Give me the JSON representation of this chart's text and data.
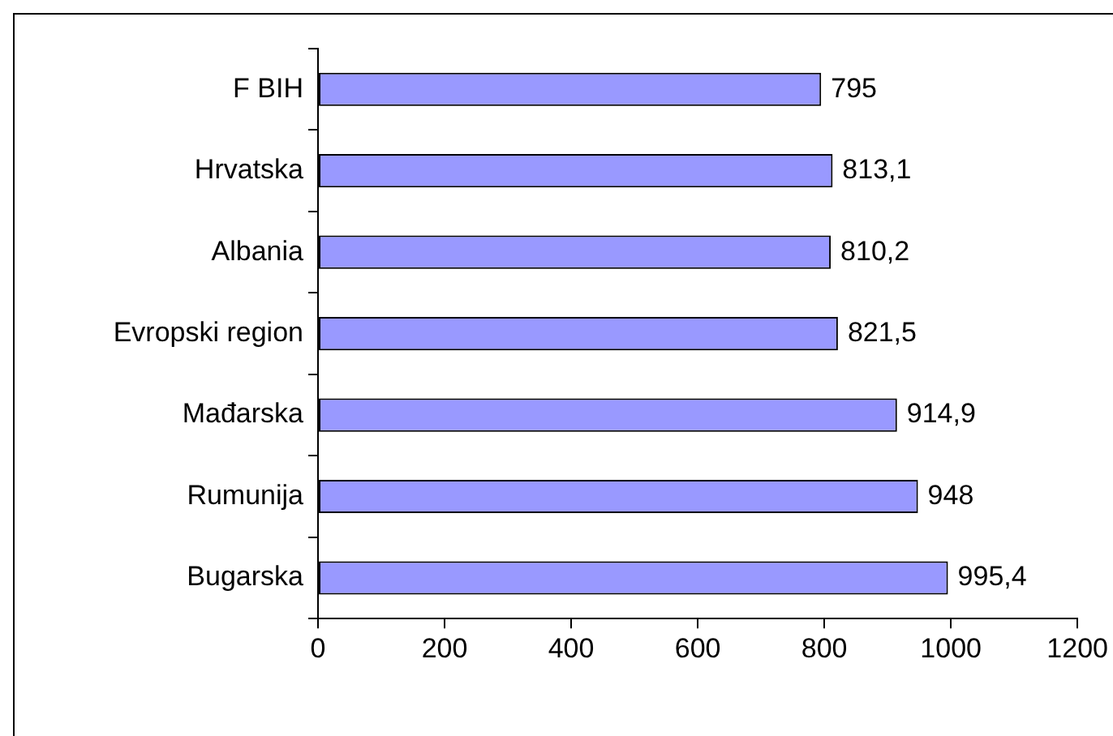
{
  "chart_data": {
    "type": "bar",
    "orientation": "horizontal",
    "categories": [
      "F BIH",
      "Hrvatska",
      "Albania",
      "Evropski region",
      "Mađarska",
      "Rumunija",
      "Bugarska"
    ],
    "values": [
      795,
      813.1,
      810.2,
      821.5,
      914.9,
      948,
      995.4
    ],
    "value_labels": [
      "795",
      "813,1",
      "810,2",
      "821,5",
      "914,9",
      "948",
      "995,4"
    ],
    "color": "#9999ff",
    "xlim": [
      0,
      1200
    ],
    "xticks": [
      0,
      200,
      400,
      600,
      800,
      1000,
      1200
    ],
    "grid": false,
    "legend": false
  }
}
